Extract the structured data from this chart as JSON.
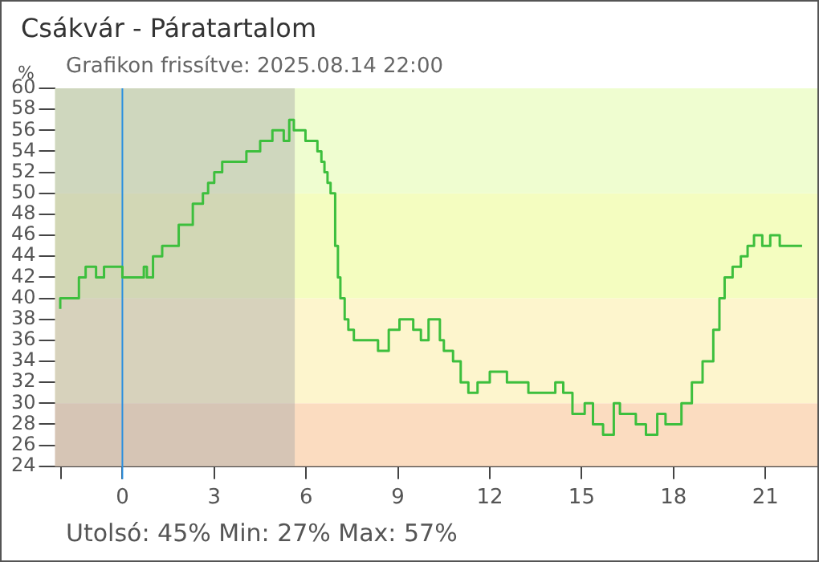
{
  "chart_data": {
    "type": "step",
    "title": "Csákvár - Páratartalom",
    "subtitle": "Grafikon frissítve: 2025.08.14 22:00",
    "ylabel": "%",
    "annotations": [
      "Utolsó: 45%  Min: 27%  Max: 57%"
    ],
    "x": [
      -2.03,
      -1.42,
      -1.2,
      -0.86,
      -0.6,
      0,
      0.1,
      0.7,
      0.8,
      1.0,
      1.3,
      1.84,
      2.3,
      2.63,
      2.8,
      3.0,
      3.26,
      4.05,
      4.2,
      4.5,
      4.9,
      5.27,
      5.45,
      5.6,
      5.98,
      6.37,
      6.5,
      6.6,
      6.7,
      6.8,
      6.95,
      7.04,
      7.12,
      7.26,
      7.38,
      7.56,
      8.35,
      8.7,
      9.05,
      9.5,
      9.75,
      10.0,
      10.37,
      10.5,
      10.8,
      11.05,
      11.3,
      11.6,
      12.0,
      12.56,
      13.26,
      13.6,
      14.14,
      14.4,
      14.7,
      15.1,
      15.37,
      15.7,
      16.05,
      16.25,
      16.77,
      17.1,
      17.47,
      17.74,
      18.26,
      18.6,
      18.95,
      19.3,
      19.5,
      19.67,
      19.93,
      20.2,
      20.42,
      20.63,
      20.9,
      21.16,
      21.47,
      21.68,
      22.2
    ],
    "series": [
      {
        "color": "#3dbf3d",
        "values": [
          39,
          40,
          42,
          43,
          42,
          43,
          42,
          42,
          43,
          42,
          44,
          45,
          47,
          49,
          50,
          51,
          52,
          53,
          54,
          54,
          55,
          56,
          55,
          57,
          56,
          55,
          54,
          53,
          52,
          51,
          50,
          45,
          42,
          40,
          38,
          37,
          36,
          35,
          37,
          38,
          37,
          36,
          38,
          36,
          35,
          34,
          32,
          31,
          32,
          33,
          32,
          31,
          31,
          32,
          31,
          29,
          30,
          28,
          27,
          30,
          29,
          28,
          27,
          29,
          28,
          30,
          32,
          34,
          37,
          40,
          42,
          43,
          44,
          45,
          46,
          45,
          46,
          45,
          45
        ]
      }
    ],
    "xlim": [
      -2.2,
      22.7
    ],
    "ylim": [
      24,
      60
    ],
    "xticks": [
      {
        "value": -2,
        "label": null
      },
      0,
      3,
      6,
      9,
      12,
      15,
      18,
      21
    ],
    "yticks": [
      24,
      26,
      28,
      30,
      32,
      34,
      36,
      38,
      40,
      42,
      44,
      46,
      48,
      50,
      52,
      54,
      56,
      58,
      60
    ],
    "grid": false,
    "legend": false,
    "bands": [
      {
        "axis": "y",
        "from": 24,
        "to": 30,
        "color": "#fbdcc0"
      },
      {
        "axis": "y",
        "from": 30,
        "to": 40,
        "color": "#fdf5cd"
      },
      {
        "axis": "y",
        "from": 40,
        "to": 50,
        "color": "#f4fdc0"
      },
      {
        "axis": "y",
        "from": 50,
        "to": 60,
        "color": "#effdd0"
      },
      {
        "axis": "x",
        "from": -2.2,
        "to": 5.63,
        "color": "#a8a8a8"
      }
    ],
    "ref_lines": [
      {
        "axis": "x",
        "value": 0,
        "color": "#2a8fe0"
      }
    ]
  }
}
